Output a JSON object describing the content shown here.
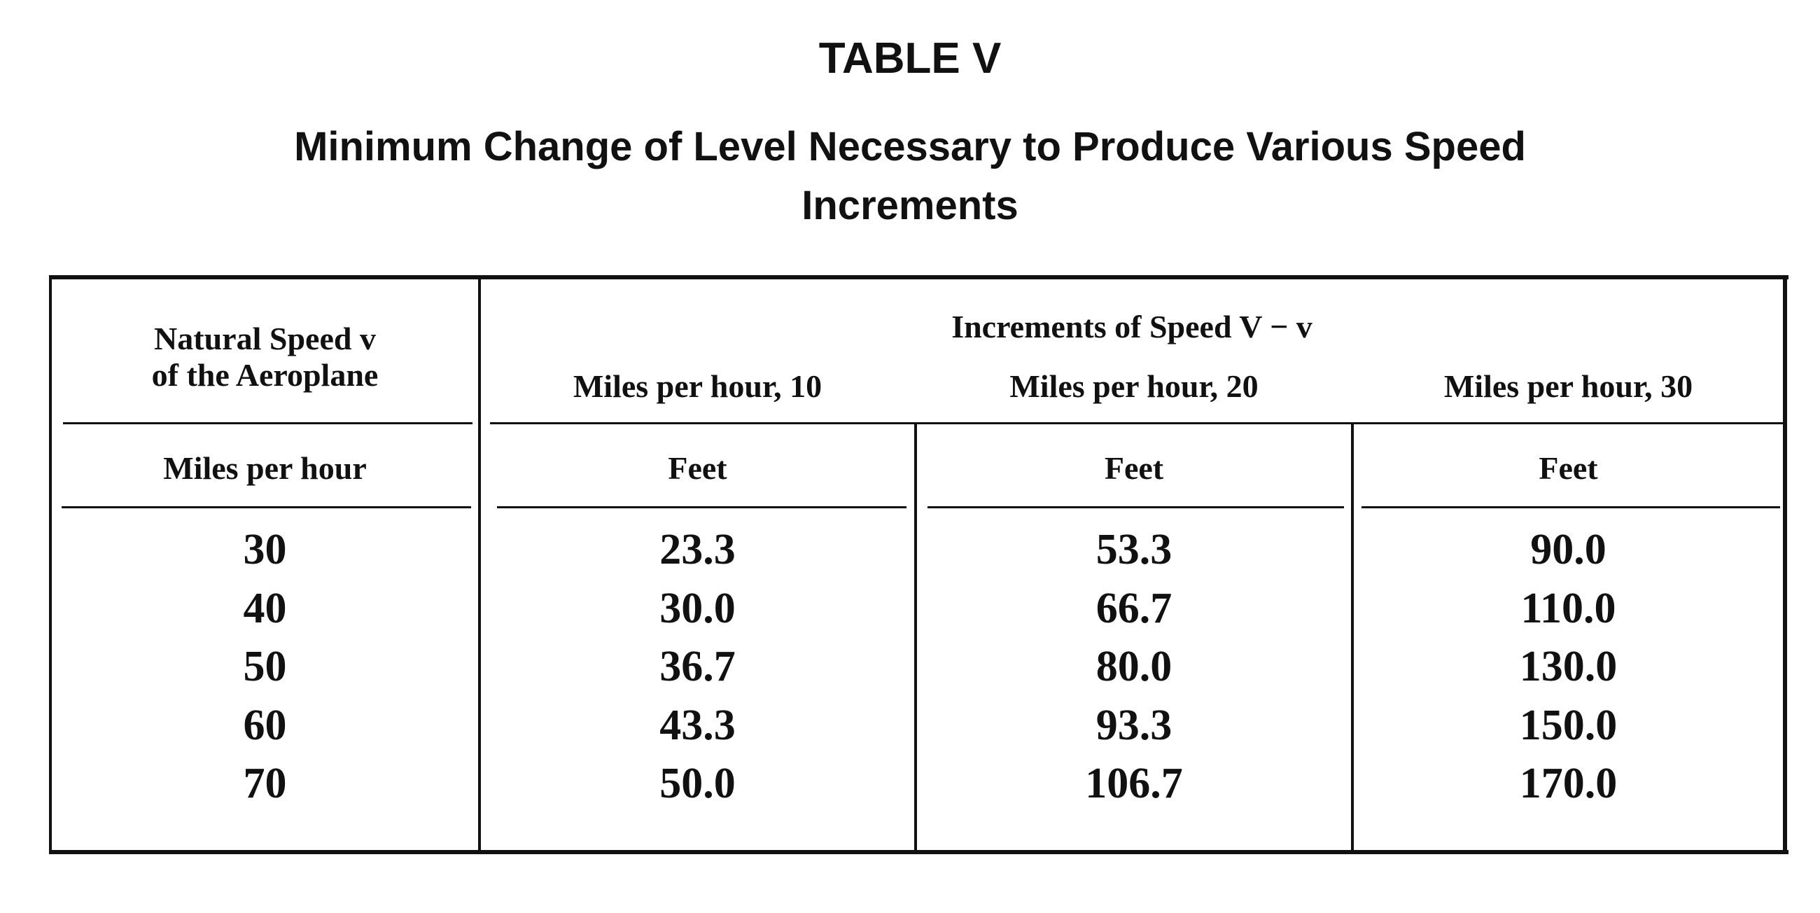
{
  "title": "TABLE V",
  "subtitle_line1": "Minimum Change of Level Necessary to Produce Various Speed",
  "subtitle_line2": "Increments",
  "table": {
    "col0_header_line1": "Natural Speed v",
    "col0_header_line2": "of the Aeroplane",
    "col0_unit": "Miles per hour",
    "group_header": "Increments of Speed V − v",
    "columns": [
      {
        "header": "Miles per hour, 10",
        "unit": "Feet"
      },
      {
        "header": "Miles per hour, 20",
        "unit": "Feet"
      },
      {
        "header": "Miles per hour, 30",
        "unit": "Feet"
      }
    ],
    "rows": [
      [
        "30",
        "23.3",
        "53.3",
        "90.0"
      ],
      [
        "40",
        "30.0",
        "66.7",
        "110.0"
      ],
      [
        "50",
        "36.7",
        "80.0",
        "130.0"
      ],
      [
        "60",
        "43.3",
        "93.3",
        "150.0"
      ],
      [
        "70",
        "50.0",
        "106.7",
        "170.0"
      ]
    ]
  }
}
